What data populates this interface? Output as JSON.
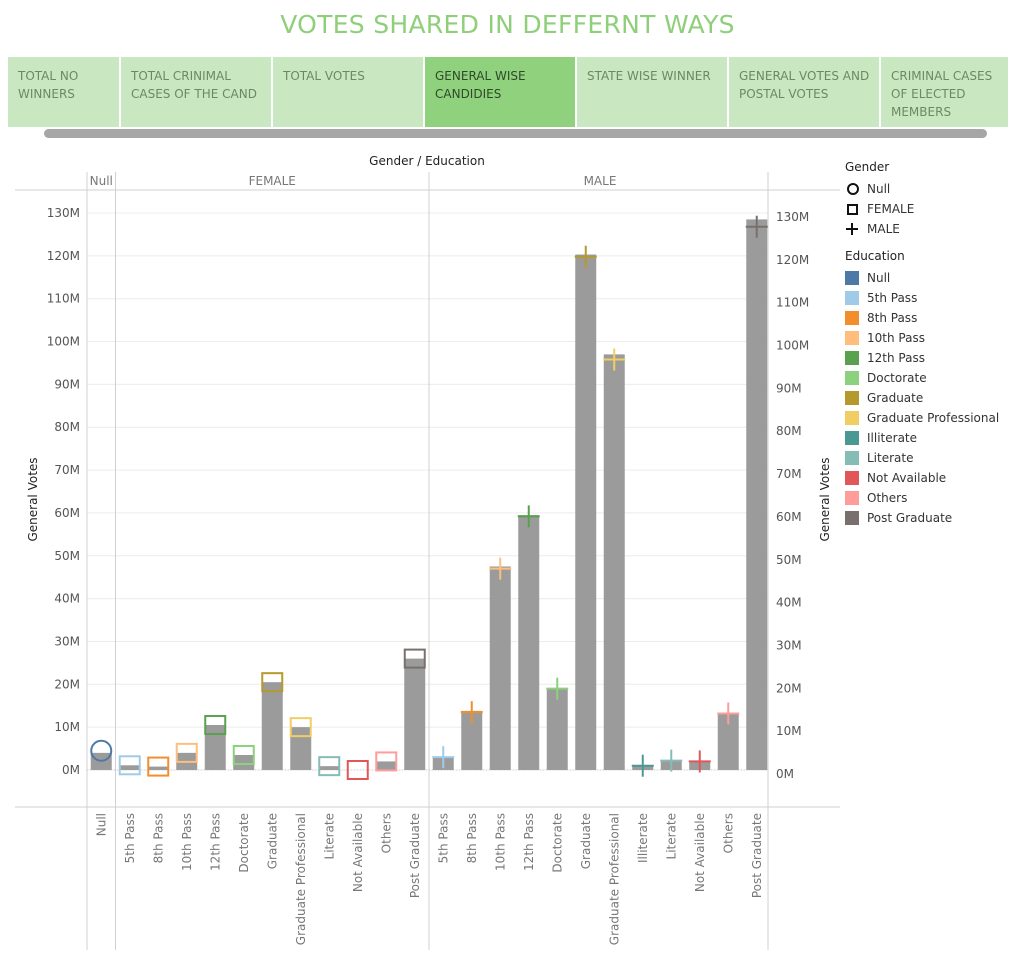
{
  "dashboard": {
    "title": "VOTES SHARED IN DEFFERNT WAYS",
    "tabs": [
      {
        "label": "TOTAL NO WINNERS",
        "active": false
      },
      {
        "label": "TOTAL CRINIMAL CASES OF THE CAND",
        "active": false
      },
      {
        "label": "TOTAL VOTES",
        "active": false
      },
      {
        "label": "GENERAL WISE CANDIDIES",
        "active": true
      },
      {
        "label": "STATE WISE WINNER",
        "active": false
      },
      {
        "label": "GENERAL VOTES AND POSTAL VOTES",
        "active": false
      },
      {
        "label": "CRIMINAL CASES OF ELECTED MEMBERS",
        "active": false
      }
    ]
  },
  "legend": {
    "gender_title": "Gender",
    "gender_items": [
      {
        "label": "Null",
        "shape": "circle-icon"
      },
      {
        "label": "FEMALE",
        "shape": "square-icon"
      },
      {
        "label": "MALE",
        "shape": "plus-icon"
      }
    ],
    "education_title": "Education",
    "education_items": [
      {
        "label": "Null",
        "color": "#4e79a7"
      },
      {
        "label": "5th Pass",
        "color": "#a0cbe8"
      },
      {
        "label": "8th Pass",
        "color": "#f28e2b"
      },
      {
        "label": "10th Pass",
        "color": "#ffbe7d"
      },
      {
        "label": "12th Pass",
        "color": "#59a14f"
      },
      {
        "label": "Doctorate",
        "color": "#8cd17d"
      },
      {
        "label": "Graduate",
        "color": "#b6992d"
      },
      {
        "label": "Graduate Professional",
        "color": "#f1ce63"
      },
      {
        "label": "Illiterate",
        "color": "#499894"
      },
      {
        "label": "Literate",
        "color": "#86bcb6"
      },
      {
        "label": "Not Available",
        "color": "#e15759"
      },
      {
        "label": "Others",
        "color": "#ff9d9a"
      },
      {
        "label": "Post Graduate",
        "color": "#79706e"
      }
    ]
  },
  "chart_data": {
    "type": "bar",
    "title": "Gender / Education",
    "ylabel": "General Votes",
    "ylabel_right": "General Votes",
    "ylim": [
      -8000000,
      135000000
    ],
    "yticks": [
      0,
      10000000,
      20000000,
      30000000,
      40000000,
      50000000,
      60000000,
      70000000,
      80000000,
      90000000,
      100000000,
      110000000,
      120000000,
      130000000
    ],
    "ytick_labels": [
      "0M",
      "10M",
      "20M",
      "30M",
      "40M",
      "50M",
      "60M",
      "70M",
      "80M",
      "90M",
      "100M",
      "110M",
      "120M",
      "130M"
    ],
    "grid": true,
    "legend_position": "right",
    "groups": [
      {
        "name": "Null",
        "categories": [
          {
            "label": "Null",
            "bar": 4000000,
            "marker": 4500000,
            "education": "Null"
          }
        ]
      },
      {
        "name": "FEMALE",
        "categories": [
          {
            "label": "5th Pass",
            "bar": 1100000,
            "marker": 1100000,
            "education": "5th Pass"
          },
          {
            "label": "8th Pass",
            "bar": 800000,
            "marker": 800000,
            "education": "8th Pass"
          },
          {
            "label": "10th Pass",
            "bar": 4000000,
            "marker": 4000000,
            "education": "10th Pass"
          },
          {
            "label": "12th Pass",
            "bar": 10500000,
            "marker": 10500000,
            "education": "12th Pass"
          },
          {
            "label": "Doctorate",
            "bar": 3500000,
            "marker": 3500000,
            "education": "Doctorate"
          },
          {
            "label": "Graduate",
            "bar": 20500000,
            "marker": 20500000,
            "education": "Graduate"
          },
          {
            "label": "Graduate Professional",
            "bar": 10000000,
            "marker": 10000000,
            "education": "Graduate Professional"
          },
          {
            "label": "Literate",
            "bar": 900000,
            "marker": 900000,
            "education": "Literate"
          },
          {
            "label": "Not Available",
            "bar": 0,
            "marker": 0,
            "education": "Not Available"
          },
          {
            "label": "Others",
            "bar": 2000000,
            "marker": 2000000,
            "education": "Others"
          },
          {
            "label": "Post Graduate",
            "bar": 26000000,
            "marker": 26000000,
            "education": "Post Graduate"
          }
        ]
      },
      {
        "name": "MALE",
        "categories": [
          {
            "label": "5th Pass",
            "bar": 3000000,
            "marker": 3000000,
            "education": "5th Pass"
          },
          {
            "label": "8th Pass",
            "bar": 13800000,
            "marker": 13500000,
            "education": "8th Pass"
          },
          {
            "label": "10th Pass",
            "bar": 47500000,
            "marker": 47000000,
            "education": "10th Pass"
          },
          {
            "label": "12th Pass",
            "bar": 59500000,
            "marker": 59200000,
            "education": "12th Pass"
          },
          {
            "label": "Doctorate",
            "bar": 19000000,
            "marker": 19000000,
            "education": "Doctorate"
          },
          {
            "label": "Graduate",
            "bar": 120300000,
            "marker": 119800000,
            "education": "Graduate"
          },
          {
            "label": "Graduate Professional",
            "bar": 97000000,
            "marker": 95800000,
            "education": "Graduate Professional"
          },
          {
            "label": "Illiterate",
            "bar": 1000000,
            "marker": 1000000,
            "education": "Illiterate"
          },
          {
            "label": "Literate",
            "bar": 2200000,
            "marker": 2200000,
            "education": "Literate"
          },
          {
            "label": "Not Available",
            "bar": 2000000,
            "marker": 2000000,
            "education": "Not Available"
          },
          {
            "label": "Others",
            "bar": 13200000,
            "marker": 13200000,
            "education": "Others"
          },
          {
            "label": "Post Graduate",
            "bar": 128500000,
            "marker": 126800000,
            "education": "Post Graduate"
          }
        ]
      }
    ]
  }
}
